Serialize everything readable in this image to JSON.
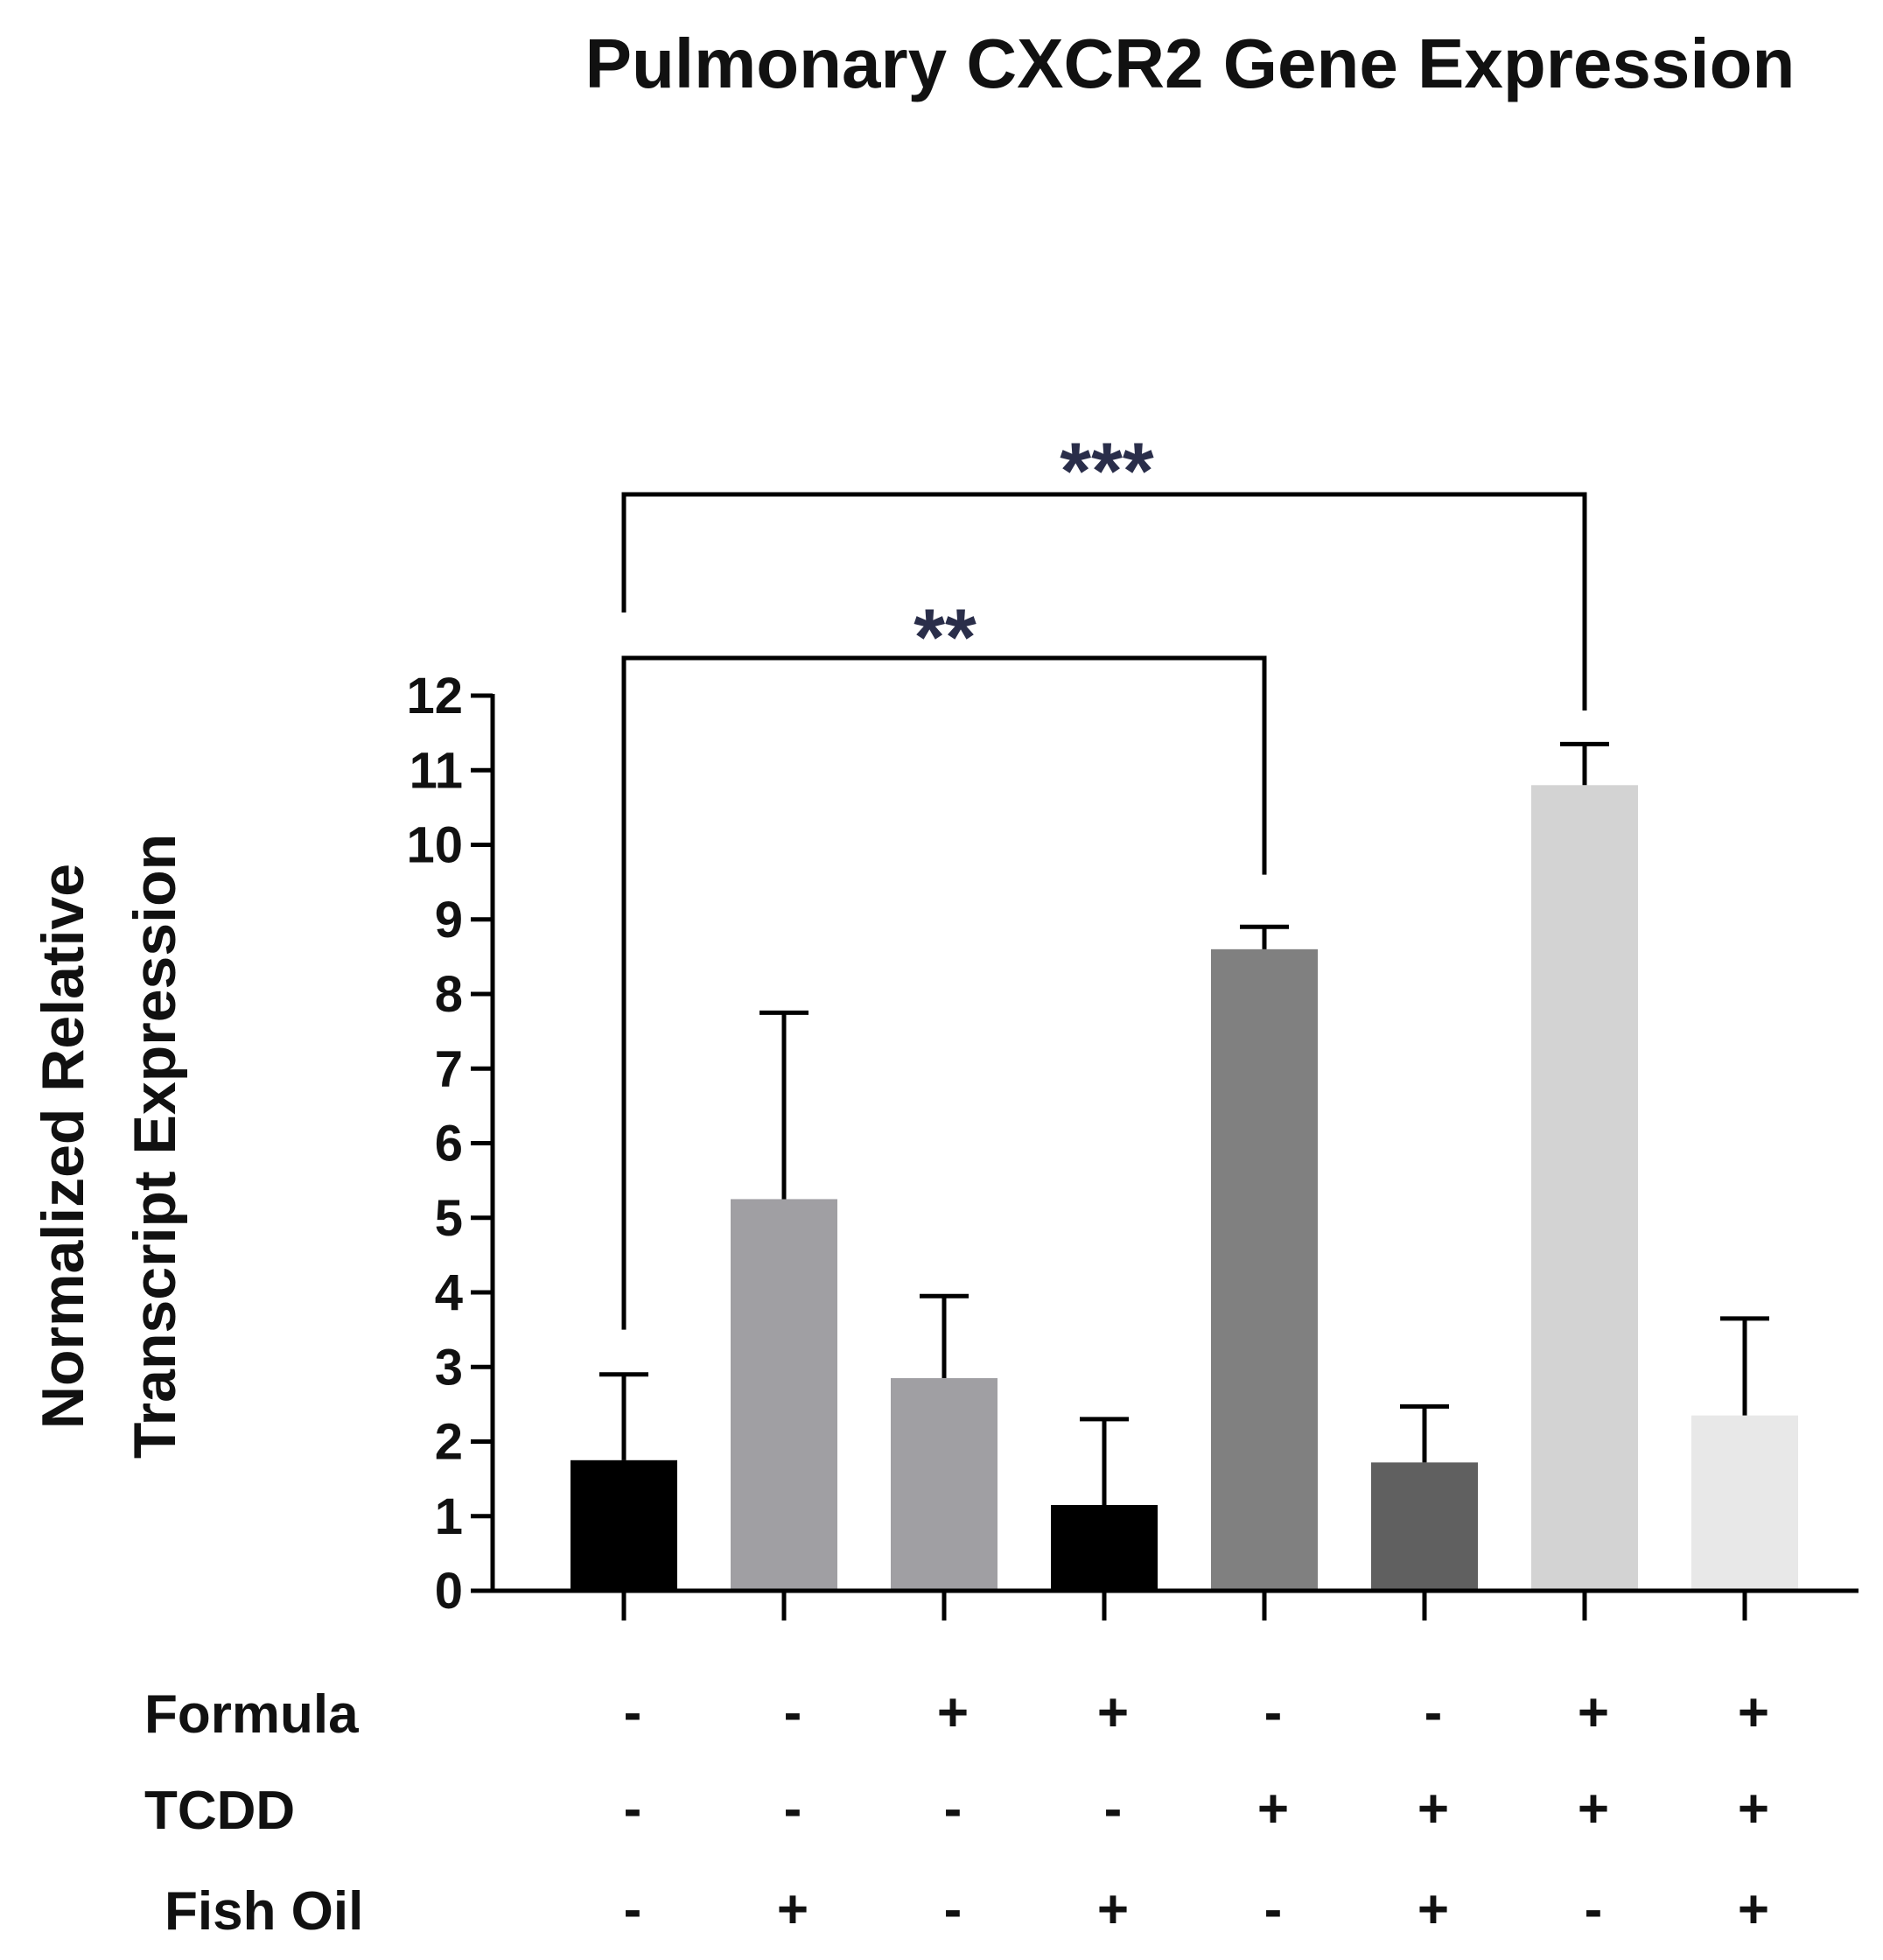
{
  "chart_data": {
    "type": "bar",
    "title": "Pulmonary CXCR2 Gene Expression",
    "ylabel_lines": [
      "Normalized Relative",
      "Transcript Expression"
    ],
    "xlabel": "",
    "ylim": [
      0,
      12
    ],
    "yticks": [
      0,
      1,
      2,
      3,
      4,
      5,
      6,
      7,
      8,
      9,
      10,
      11,
      12
    ],
    "bars": [
      {
        "value": 1.75,
        "error": 1.15,
        "color": "#000000"
      },
      {
        "value": 5.25,
        "error": 2.5,
        "color": "#a09fa3"
      },
      {
        "value": 2.85,
        "error": 1.1,
        "color": "#a09fa3"
      },
      {
        "value": 1.15,
        "error": 1.15,
        "color": "#000000"
      },
      {
        "value": 8.6,
        "error": 0.3,
        "color": "#808080"
      },
      {
        "value": 1.72,
        "error": 0.75,
        "color": "#606060"
      },
      {
        "value": 10.8,
        "error": 0.55,
        "color": "#d3d3d3"
      },
      {
        "value": 2.35,
        "error": 1.3,
        "color": "#e8e8e8"
      }
    ],
    "conditions": [
      {
        "label": "Formula",
        "signs": [
          "-",
          "-",
          "+",
          "+",
          "-",
          "-",
          "+",
          "+"
        ]
      },
      {
        "label": "TCDD",
        "signs": [
          "-",
          "-",
          "-",
          "-",
          "+",
          "+",
          "+",
          "+"
        ]
      },
      {
        "label": "Fish Oil",
        "signs": [
          "-",
          "+",
          "-",
          "+",
          "-",
          "+",
          "-",
          "+"
        ]
      }
    ],
    "annotations": [
      {
        "from_bar": 0,
        "to_bar": 4,
        "text": "**"
      },
      {
        "from_bar": 0,
        "to_bar": 6,
        "text": "***"
      }
    ]
  }
}
